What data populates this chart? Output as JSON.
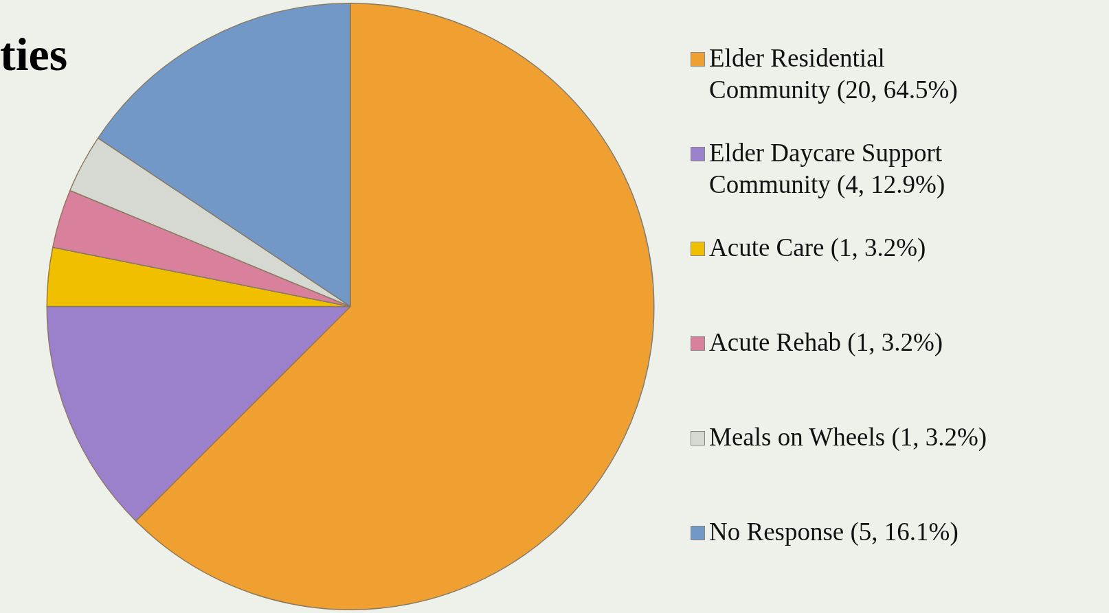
{
  "chart_data": {
    "type": "pie",
    "title": "ties",
    "categories": [
      "Elder Residential Community (20, 64.5%)",
      "Elder Daycare Support Community (4, 12.9%)",
      "Acute Care (1, 3.2%)",
      "Acute Rehab (1, 3.2%)",
      "Meals on Wheels (1, 3.2%)",
      "No Response (5, 16.1%)"
    ],
    "values": [
      20,
      4,
      1,
      1,
      1,
      5
    ],
    "colors": [
      "#f0a030",
      "#9b80cc",
      "#f0c000",
      "#d8809c",
      "#d6d8d2",
      "#7298c8"
    ],
    "legend": "right"
  }
}
